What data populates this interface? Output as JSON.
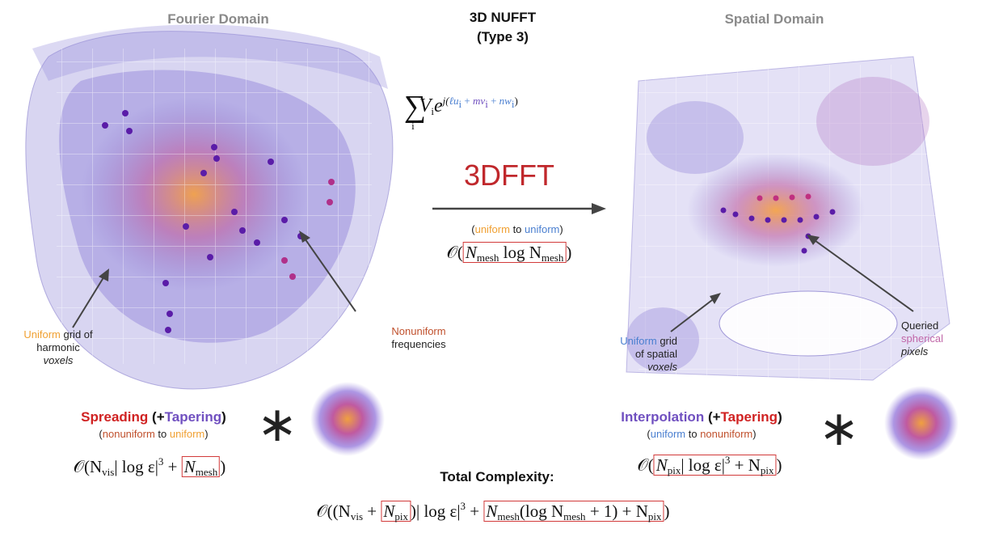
{
  "header": {
    "left": "Fourier Domain",
    "center": [
      "3D NUFFT",
      "(Type 3)"
    ],
    "right": "Spatial Domain"
  },
  "sum_formula": [
    "∑",
    "i",
    "V",
    "i",
    "e",
    "j(",
    "ℓu",
    "i",
    " + ",
    "mv",
    "i",
    " + ",
    "nw",
    "i",
    ")"
  ],
  "fft_label": "3DFFT",
  "fft_note": [
    "(",
    "uniform",
    " to ",
    "uniform",
    ")"
  ],
  "fft_complexity": [
    "𝒪(",
    "N",
    "mesh",
    " log N",
    "mesh",
    ")"
  ],
  "annotations": {
    "left_grid": [
      "Uniform",
      " grid of",
      "harmonic",
      "voxels"
    ],
    "frequencies": [
      "Nonuniform",
      "frequencies"
    ],
    "right_grid": [
      "Uniform",
      " grid",
      "of spatial",
      "voxels"
    ],
    "pixels": [
      "Queried",
      "spherical",
      "pixels"
    ]
  },
  "spreading": {
    "title": [
      "Spreading",
      " (+",
      "Tapering",
      ")"
    ],
    "note": [
      "(",
      "nonuniform",
      " to ",
      "uniform",
      ")"
    ],
    "complexity": [
      "𝒪(N",
      "vis",
      "| log ε|",
      "3",
      " + ",
      "N",
      "mesh",
      ")"
    ]
  },
  "interpolation": {
    "title": [
      "Interpolation",
      " (+",
      "Tapering",
      ")"
    ],
    "note": [
      "(",
      "uniform",
      " to ",
      "nonuniform",
      ")"
    ],
    "complexity": [
      "𝒪(",
      "N",
      "pix",
      "| log ε|",
      "3",
      " + N",
      "pix",
      ")"
    ]
  },
  "operator": "∗",
  "total": {
    "title": "Total Complexity:",
    "formula": [
      "𝒪((N",
      "vis",
      " + ",
      "N",
      "pix",
      ")| log ε|",
      "3",
      " + ",
      "N",
      "mesh",
      "(log N",
      "mesh",
      " + 1) + N",
      "pix",
      ")"
    ]
  }
}
